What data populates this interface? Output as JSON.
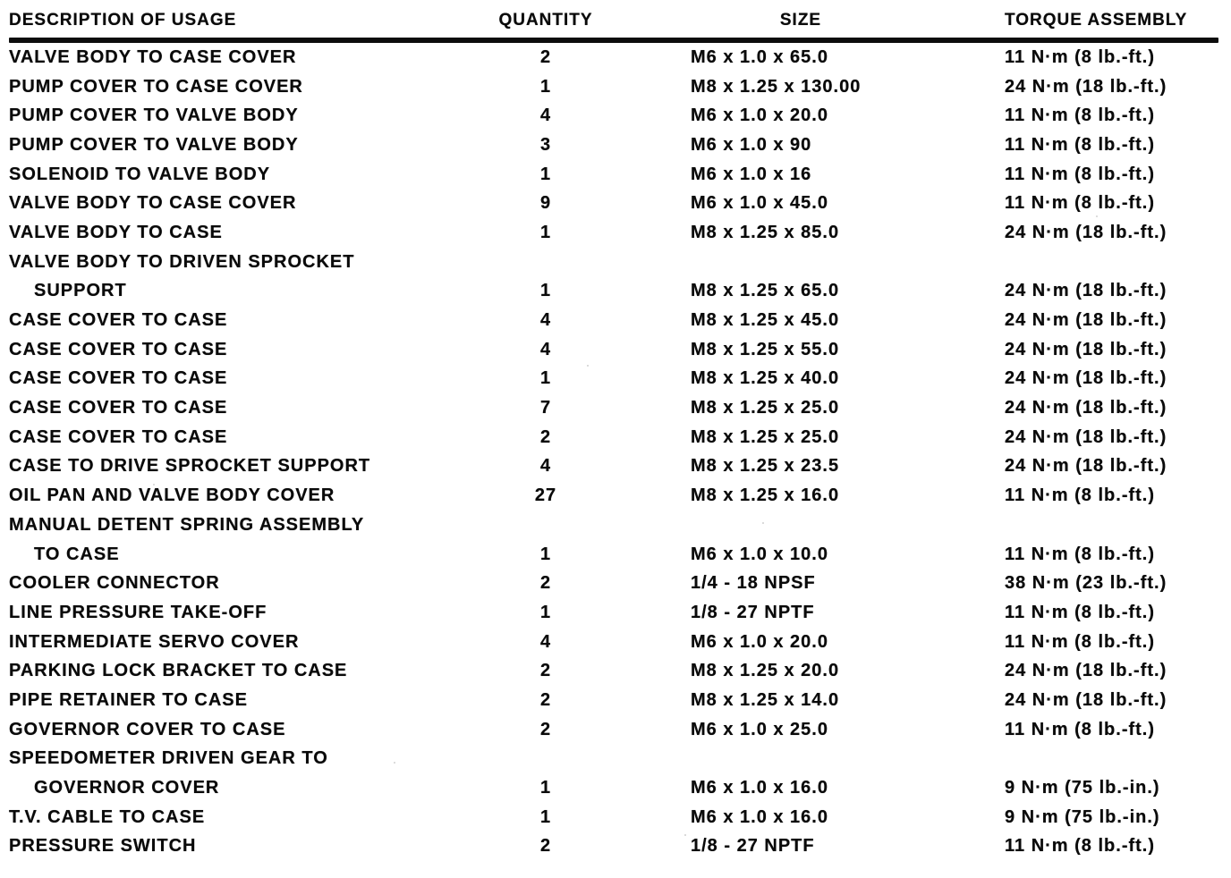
{
  "table": {
    "headers": {
      "description": "DESCRIPTION OF USAGE",
      "quantity": "QUANTITY",
      "size": "SIZE",
      "torque": "TORQUE ASSEMBLY"
    },
    "rows": [
      {
        "desc_lines": [
          "VALVE BODY TO CASE COVER"
        ],
        "quantity": "2",
        "size": "M6 x 1.0 x 65.0",
        "torque": "11 N·m (8 lb.-ft.)"
      },
      {
        "desc_lines": [
          "PUMP COVER TO CASE COVER"
        ],
        "quantity": "1",
        "size": "M8 x 1.25 x 130.00",
        "torque": "24 N·m (18 lb.-ft.)"
      },
      {
        "desc_lines": [
          "PUMP COVER TO VALVE BODY"
        ],
        "quantity": "4",
        "size": "M6 x 1.0 x 20.0",
        "torque": "11 N·m (8 lb.-ft.)"
      },
      {
        "desc_lines": [
          "PUMP COVER TO VALVE BODY"
        ],
        "quantity": "3",
        "size": "M6 x 1.0 x 90",
        "torque": "11 N·m (8 lb.-ft.)"
      },
      {
        "desc_lines": [
          "SOLENOID TO VALVE BODY"
        ],
        "quantity": "1",
        "size": "M6 x 1.0 x 16",
        "torque": "11 N·m (8 lb.-ft.)"
      },
      {
        "desc_lines": [
          "VALVE BODY TO CASE COVER"
        ],
        "quantity": "9",
        "size": "M6 x 1.0 x 45.0",
        "torque": "11 N·m (8 lb.-ft.)"
      },
      {
        "desc_lines": [
          "VALVE BODY TO CASE"
        ],
        "quantity": "1",
        "size": "M8 x 1.25 x 85.0",
        "torque": "24 N·m (18 lb.-ft.)"
      },
      {
        "desc_lines": [
          "VALVE BODY TO DRIVEN SPROCKET",
          "SUPPORT"
        ],
        "quantity": "1",
        "size": "M8 x 1.25 x 65.0",
        "torque": "24 N·m (18 lb.-ft.)"
      },
      {
        "desc_lines": [
          "CASE COVER TO CASE"
        ],
        "quantity": "4",
        "size": "M8 x 1.25 x 45.0",
        "torque": "24 N·m (18 lb.-ft.)"
      },
      {
        "desc_lines": [
          "CASE COVER TO CASE"
        ],
        "quantity": "4",
        "size": "M8 x 1.25 x 55.0",
        "torque": "24 N·m (18 lb.-ft.)"
      },
      {
        "desc_lines": [
          "CASE COVER TO CASE"
        ],
        "quantity": "1",
        "size": "M8 x 1.25 x 40.0",
        "torque": "24 N·m (18 lb.-ft.)"
      },
      {
        "desc_lines": [
          "CASE COVER TO CASE"
        ],
        "quantity": "7",
        "size": "M8 x 1.25 x 25.0",
        "torque": "24 N·m (18 lb.-ft.)"
      },
      {
        "desc_lines": [
          "CASE COVER TO CASE"
        ],
        "quantity": "2",
        "size": "M8 x 1.25 x 25.0",
        "torque": "24 N·m (18 lb.-ft.)"
      },
      {
        "desc_lines": [
          "CASE TO DRIVE SPROCKET SUPPORT"
        ],
        "quantity": "4",
        "size": "M8 x 1.25 x 23.5",
        "torque": "24 N·m (18 lb.-ft.)"
      },
      {
        "desc_lines": [
          "OIL PAN AND VALVE BODY COVER"
        ],
        "quantity": "27",
        "size": "M8 x 1.25 x 16.0",
        "torque": "11 N·m (8 lb.-ft.)"
      },
      {
        "desc_lines": [
          "MANUAL DETENT SPRING ASSEMBLY",
          "TO CASE"
        ],
        "quantity": "1",
        "size": "M6 x 1.0 x 10.0",
        "torque": "11 N·m (8 lb.-ft.)"
      },
      {
        "desc_lines": [
          "COOLER CONNECTOR"
        ],
        "quantity": "2",
        "size": "1/4 - 18 NPSF",
        "torque": "38 N·m (23 lb.-ft.)"
      },
      {
        "desc_lines": [
          "LINE PRESSURE TAKE-OFF"
        ],
        "quantity": "1",
        "size": "1/8 - 27 NPTF",
        "torque": "11 N·m (8 lb.-ft.)"
      },
      {
        "desc_lines": [
          "INTERMEDIATE SERVO COVER"
        ],
        "quantity": "4",
        "size": "M6 x 1.0 x 20.0",
        "torque": "11 N·m (8 lb.-ft.)"
      },
      {
        "desc_lines": [
          "PARKING LOCK BRACKET TO CASE"
        ],
        "quantity": "2",
        "size": "M8 x 1.25 x 20.0",
        "torque": "24 N·m (18 lb.-ft.)"
      },
      {
        "desc_lines": [
          "PIPE RETAINER TO CASE"
        ],
        "quantity": "2",
        "size": "M8 x 1.25 x 14.0",
        "torque": "24 N·m (18 lb.-ft.)"
      },
      {
        "desc_lines": [
          "GOVERNOR COVER TO CASE"
        ],
        "quantity": "2",
        "size": "M6 x 1.0 x 25.0",
        "torque": "11 N·m (8 lb.-ft.)"
      },
      {
        "desc_lines": [
          "SPEEDOMETER DRIVEN GEAR TO",
          "GOVERNOR COVER"
        ],
        "quantity": "1",
        "size": "M6 x 1.0 x 16.0",
        "torque": "9 N·m (75 lb.-in.)"
      },
      {
        "desc_lines": [
          "T.V. CABLE TO CASE"
        ],
        "quantity": "1",
        "size": "M6 x 1.0 x 16.0",
        "torque": "9 N·m (75 lb.-in.)"
      },
      {
        "desc_lines": [
          "PRESSURE SWITCH"
        ],
        "quantity": "2",
        "size": "1/8 - 27 NPTF",
        "torque": "11 N·m (8 lb.-ft.)"
      }
    ]
  }
}
